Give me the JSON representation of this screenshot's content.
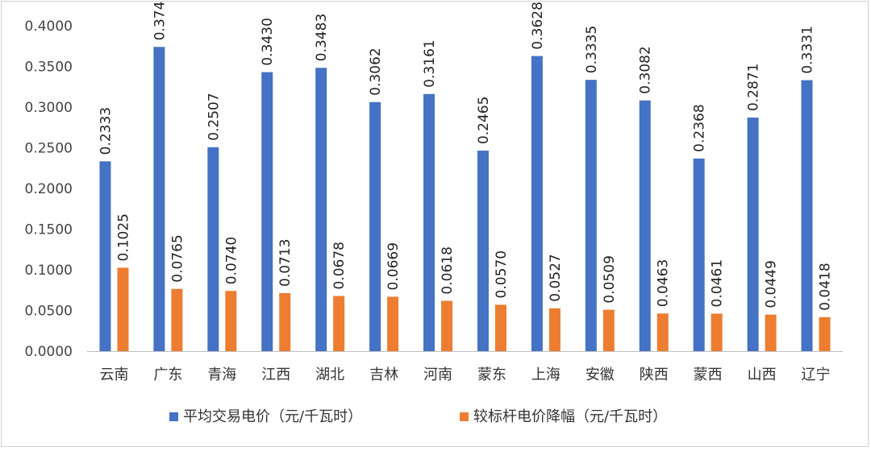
{
  "chart_data": {
    "type": "bar",
    "categories": [
      "云南",
      "广东",
      "青海",
      "江西",
      "湖北",
      "吉林",
      "河南",
      "蒙东",
      "上海",
      "安徽",
      "陕西",
      "蒙西",
      "山西",
      "辽宁"
    ],
    "series": [
      {
        "name": "平均交易电价（元/千瓦时）",
        "color": "#4472C4",
        "values": [
          0.2333,
          0.374,
          0.2507,
          0.343,
          0.3483,
          0.3062,
          0.3161,
          0.2465,
          0.3628,
          0.3335,
          0.3082,
          0.2368,
          0.2871,
          0.3331
        ]
      },
      {
        "name": "较标杆电价降幅（元/千瓦时）",
        "color": "#ED7D31",
        "values": [
          0.1025,
          0.0765,
          0.074,
          0.0713,
          0.0678,
          0.0669,
          0.0618,
          0.057,
          0.0527,
          0.0509,
          0.0463,
          0.0461,
          0.0449,
          0.0418
        ]
      }
    ],
    "ylim": [
      0,
      0.4
    ],
    "yticks": [
      "0.0000",
      "0.0500",
      "0.1000",
      "0.1500",
      "0.2000",
      "0.2500",
      "0.3000",
      "0.3500",
      "0.4000"
    ],
    "grid": false,
    "legend_position": "bottom",
    "data_labels": true
  }
}
